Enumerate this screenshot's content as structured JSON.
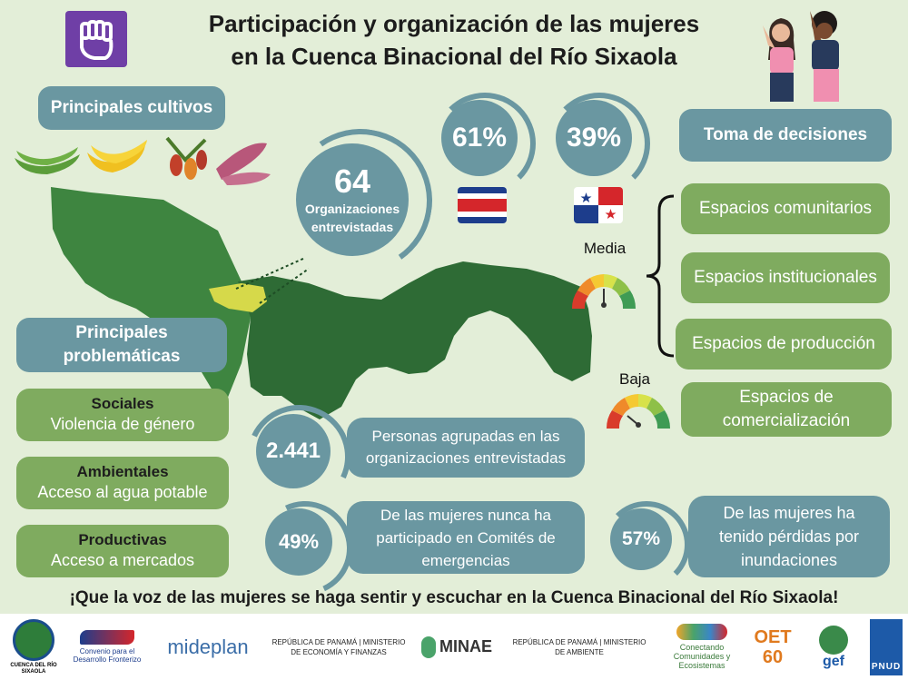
{
  "header": {
    "title_line1": "Participación y organización de las mujeres",
    "title_line2": "en la Cuenca Binacional del Río Sixaola"
  },
  "cultivos": {
    "label": "Principales cultivos"
  },
  "organizaciones": {
    "count": "64",
    "label": "Organizaciones entrevistadas"
  },
  "paises": {
    "costa_rica_pct": "61%",
    "panama_pct": "39%"
  },
  "decisiones": {
    "title": "Toma de decisiones",
    "items": [
      "Espacios comunitarios",
      "Espacios institucionales",
      "Espacios de producción",
      "Espacios de comercialización"
    ],
    "gauge_media": "Media",
    "gauge_baja": "Baja"
  },
  "problematicas": {
    "title": "Principales problemáticas",
    "items": [
      {
        "category": "Sociales",
        "text": "Violencia de género"
      },
      {
        "category": "Ambientales",
        "text": "Acceso al agua potable"
      },
      {
        "category": "Productivas",
        "text": "Acceso a mercados"
      }
    ]
  },
  "stats": {
    "personas_value": "2.441",
    "personas_text": "Personas agrupadas en las organizaciones  entrevistadas",
    "comites_value": "49%",
    "comites_text": "De las mujeres nunca ha participado en Comités de emergencias",
    "perdidas_value": "57%",
    "perdidas_text": "De las mujeres ha tenido pérdidas por inundaciones"
  },
  "slogan": "¡Que la voz de las mujeres se haga sentir y escuchar en la Cuenca Binacional del Río Sixaola!",
  "footer": {
    "logos": [
      {
        "name": "cuenca-sixaola-logo",
        "text": "CUENCA DEL RÍO SIXAOLA"
      },
      {
        "name": "convenio-logo",
        "text": "Convenio para el Desarrollo Fronterizo"
      },
      {
        "name": "mideplan-logo",
        "text": "mideplan"
      },
      {
        "name": "mef-panama-logo",
        "text": "REPÚBLICA DE PANAMÁ | MINISTERIO DE ECONOMÍA Y FINANZAS"
      },
      {
        "name": "minae-logo",
        "text": "MINAE"
      },
      {
        "name": "miambiente-logo",
        "text": "REPÚBLICA DE PANAMÁ | MINISTERIO DE AMBIENTE"
      },
      {
        "name": "conectando-logo",
        "text": "Conectando Comunidades y Ecosistemas"
      },
      {
        "name": "oet-logo",
        "text": "OET 60"
      },
      {
        "name": "gef-logo",
        "text": "gef"
      },
      {
        "name": "pnud-logo",
        "text": "PNUD"
      }
    ]
  },
  "colors": {
    "accent_blue": "#6a97a1",
    "accent_green": "#7fab5f",
    "map_dark": "#2e6b35",
    "map_light": "#3e8540",
    "highlight": "#d6d94a"
  }
}
